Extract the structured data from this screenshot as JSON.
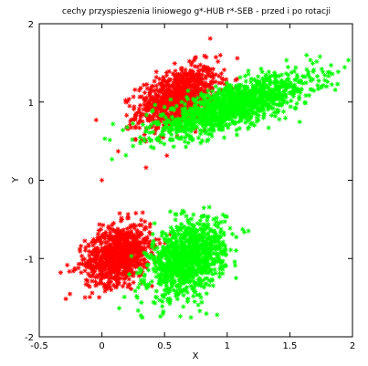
{
  "chart_data": {
    "type": "scatter",
    "title": "cechy przyspieszenia liniowego g*-HUB r*-SEB - przed i po rotacji",
    "xlabel": "X",
    "ylabel": "Y",
    "xlim": [
      -0.5,
      2
    ],
    "ylim": [
      -2,
      2
    ],
    "x_ticks": [
      "-0.5",
      "0",
      "0.5",
      "1",
      "1.5",
      "2"
    ],
    "y_ticks": [
      "-2",
      "-1",
      "0",
      "1",
      "2"
    ],
    "grid": false,
    "legend": "none",
    "marker": "*",
    "series": [
      {
        "color": "#ff0000",
        "clusters": [
          {
            "center": [
              0.6,
              1.05
            ],
            "spread": [
              0.16,
              0.2
            ],
            "corr": 0.45,
            "count": 900
          },
          {
            "center": [
              0.13,
              -0.95
            ],
            "spread": [
              0.13,
              0.19
            ],
            "corr": 0.3,
            "count": 900
          }
        ],
        "outliers": [
          [
            0.0,
            0.0
          ],
          [
            -0.33,
            -1.18
          ],
          [
            0.13,
            0.37
          ],
          [
            0.85,
            0.8
          ]
        ]
      },
      {
        "color": "#00ff00",
        "clusters": [
          {
            "center": [
              1.05,
              0.95
            ],
            "spread": [
              0.32,
              0.2
            ],
            "corr": 0.75,
            "count": 1300
          },
          {
            "center": [
              0.68,
              -1.0
            ],
            "spread": [
              0.15,
              0.24
            ],
            "corr": 0.35,
            "count": 1100
          }
        ],
        "outliers": [
          [
            1.74,
            1.58
          ],
          [
            0.54,
            -1.55
          ],
          [
            0.92,
            -1.72
          ],
          [
            0.42,
            -0.55
          ]
        ]
      }
    ]
  }
}
